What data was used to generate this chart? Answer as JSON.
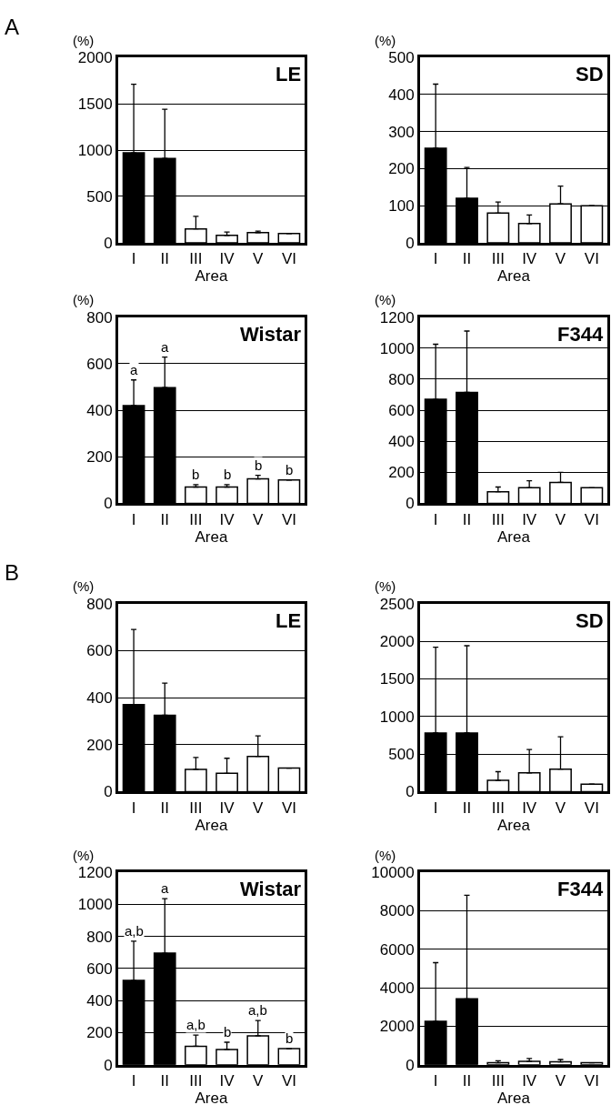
{
  "chart_data": [
    {
      "type": "bar",
      "title": "LE",
      "ylabel": "(%)",
      "xlabel": "Area",
      "annotations": [
        "A"
      ],
      "categories": [
        "I",
        "II",
        "III",
        "IV",
        "V",
        "VI"
      ],
      "values": [
        970,
        910,
        150,
        80,
        110,
        100
      ],
      "colors": [
        "#000000",
        "#000000",
        "#ffffff",
        "#ffffff",
        "#ffffff",
        "#ffffff"
      ],
      "errors": [
        [
          970,
          1710
        ],
        [
          910,
          1440
        ],
        [
          150,
          285
        ],
        [
          80,
          115
        ],
        [
          110,
          125
        ],
        null
      ],
      "ylim": [
        0,
        2000
      ],
      "yticks": [
        0,
        500,
        1000,
        1500,
        2000
      ],
      "grid": "y"
    },
    {
      "type": "bar",
      "title": "SD",
      "ylabel": "(%)",
      "xlabel": "Area",
      "categories": [
        "I",
        "II",
        "III",
        "IV",
        "V",
        "VI"
      ],
      "values": [
        255,
        120,
        80,
        52,
        105,
        100
      ],
      "colors": [
        "#000000",
        "#000000",
        "#ffffff",
        "#ffffff",
        "#ffffff",
        "#ffffff"
      ],
      "errors": [
        [
          255,
          428
        ],
        [
          120,
          203
        ],
        [
          80,
          110
        ],
        [
          52,
          75
        ],
        [
          105,
          153
        ],
        null
      ],
      "ylim": [
        0,
        500
      ],
      "yticks": [
        0,
        100,
        200,
        300,
        400,
        500
      ],
      "grid": "y"
    },
    {
      "type": "bar",
      "title": "Wistar",
      "ylabel": "(%)",
      "xlabel": "Area",
      "annotations": [
        {
          "text": "a",
          "x": "I",
          "y": 530
        },
        {
          "text": "a",
          "x": "II",
          "y": 628
        },
        {
          "text": "b",
          "x": "III",
          "y": 80
        },
        {
          "text": "b",
          "x": "IV",
          "y": 80
        },
        {
          "text": "b",
          "x": "V",
          "y": 120
        },
        {
          "text": "b",
          "x": "VI",
          "y": 100
        }
      ],
      "categories": [
        "I",
        "II",
        "III",
        "IV",
        "V",
        "VI"
      ],
      "values": [
        420,
        497,
        70,
        70,
        105,
        100
      ],
      "colors": [
        "#000000",
        "#000000",
        "#ffffff",
        "#ffffff",
        "#ffffff",
        "#ffffff"
      ],
      "errors": [
        [
          420,
          530
        ],
        [
          497,
          628
        ],
        [
          70,
          80
        ],
        [
          70,
          80
        ],
        [
          105,
          120
        ],
        null
      ],
      "ylim": [
        0,
        800
      ],
      "yticks": [
        0,
        200,
        400,
        600,
        800
      ],
      "grid": "y"
    },
    {
      "type": "bar",
      "title": "F344",
      "ylabel": "(%)",
      "xlabel": "Area",
      "categories": [
        "I",
        "II",
        "III",
        "IV",
        "V",
        "VI"
      ],
      "values": [
        670,
        715,
        75,
        100,
        135,
        100
      ],
      "colors": [
        "#000000",
        "#000000",
        "#ffffff",
        "#ffffff",
        "#ffffff",
        "#ffffff"
      ],
      "errors": [
        [
          670,
          1025
        ],
        [
          715,
          1110
        ],
        [
          75,
          105
        ],
        [
          100,
          145
        ],
        [
          135,
          200
        ],
        null
      ],
      "ylim": [
        0,
        1200
      ],
      "yticks": [
        0,
        200,
        400,
        600,
        800,
        1000,
        1200
      ],
      "grid": "y"
    },
    {
      "type": "bar",
      "title": "LE",
      "ylabel": "(%)",
      "xlabel": "Area",
      "annotations": [
        "B"
      ],
      "categories": [
        "I",
        "II",
        "III",
        "IV",
        "V",
        "VI"
      ],
      "values": [
        370,
        325,
        95,
        78,
        150,
        100
      ],
      "colors": [
        "#000000",
        "#000000",
        "#ffffff",
        "#ffffff",
        "#ffffff",
        "#ffffff"
      ],
      "errors": [
        [
          370,
          690
        ],
        [
          325,
          462
        ],
        [
          95,
          145
        ],
        [
          78,
          142
        ],
        [
          150,
          237
        ],
        null
      ],
      "ylim": [
        0,
        800
      ],
      "yticks": [
        0,
        200,
        400,
        600,
        800
      ],
      "grid": "y"
    },
    {
      "type": "bar",
      "title": "SD",
      "ylabel": "(%)",
      "xlabel": "Area",
      "categories": [
        "I",
        "II",
        "III",
        "IV",
        "V",
        "VI"
      ],
      "values": [
        780,
        780,
        150,
        250,
        300,
        100
      ],
      "colors": [
        "#000000",
        "#000000",
        "#ffffff",
        "#ffffff",
        "#ffffff",
        "#ffffff"
      ],
      "errors": [
        [
          780,
          1920
        ],
        [
          780,
          1940
        ],
        [
          150,
          265
        ],
        [
          250,
          560
        ],
        [
          300,
          730
        ],
        null
      ],
      "ylim": [
        0,
        2500
      ],
      "yticks": [
        0,
        500,
        1000,
        1500,
        2000,
        2500
      ],
      "grid": "y"
    },
    {
      "type": "bar",
      "title": "Wistar",
      "ylabel": "(%)",
      "xlabel": "Area",
      "annotations": [
        {
          "text": "a,b",
          "x": "I",
          "y": 770
        },
        {
          "text": "a",
          "x": "II",
          "y": 1035
        },
        {
          "text": "a,b",
          "x": "III",
          "y": 185
        },
        {
          "text": "b",
          "x": "IV",
          "y": 140
        },
        {
          "text": "a,b",
          "x": "V",
          "y": 275
        },
        {
          "text": "b",
          "x": "VI",
          "y": 100
        }
      ],
      "categories": [
        "I",
        "II",
        "III",
        "IV",
        "V",
        "VI"
      ],
      "values": [
        525,
        695,
        115,
        95,
        180,
        100
      ],
      "colors": [
        "#000000",
        "#000000",
        "#ffffff",
        "#ffffff",
        "#ffffff",
        "#ffffff"
      ],
      "errors": [
        [
          525,
          770
        ],
        [
          695,
          1035
        ],
        [
          115,
          185
        ],
        [
          95,
          140
        ],
        [
          180,
          275
        ],
        null
      ],
      "ylim": [
        0,
        1200
      ],
      "yticks": [
        0,
        200,
        400,
        600,
        800,
        1000,
        1200
      ],
      "grid": "y"
    },
    {
      "type": "bar",
      "title": "F344",
      "ylabel": "(%)",
      "xlabel": "Area",
      "categories": [
        "I",
        "II",
        "III",
        "IV",
        "V",
        "VI"
      ],
      "values": [
        2250,
        3420,
        100,
        180,
        150,
        100
      ],
      "colors": [
        "#000000",
        "#000000",
        "#ffffff",
        "#ffffff",
        "#ffffff",
        "#ffffff"
      ],
      "errors": [
        [
          2250,
          5300
        ],
        [
          3420,
          8800
        ],
        [
          100,
          200
        ],
        [
          180,
          320
        ],
        [
          150,
          270
        ],
        null
      ],
      "ylim": [
        0,
        10000
      ],
      "yticks": [
        0,
        2000,
        4000,
        6000,
        8000,
        10000
      ],
      "grid": "y"
    }
  ]
}
